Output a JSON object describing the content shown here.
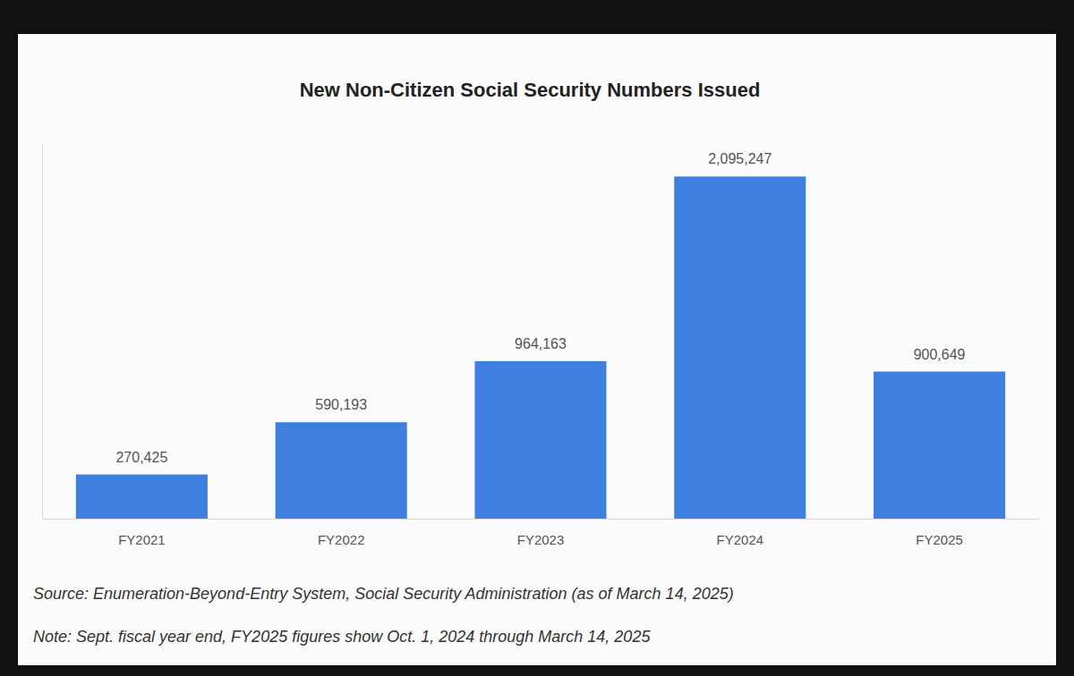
{
  "chart_data": {
    "type": "bar",
    "title": "New Non-Citizen Social Security Numbers Issued",
    "categories": [
      "FY2021",
      "FY2022",
      "FY2023",
      "FY2024",
      "FY2025"
    ],
    "values": [
      270425,
      590193,
      964163,
      2095247,
      900649
    ],
    "value_labels": [
      "270,425",
      "590,193",
      "964,163",
      "2,095,247",
      "900,649"
    ],
    "color": "#3f7fdf",
    "ylim": [
      0,
      2300000
    ],
    "data_labels": true,
    "tick_labels": "x",
    "source": "Source: Enumeration-Beyond-Entry System, Social Security Administration (as of March 14, 2025)",
    "note": "Note: Sept. fiscal year end, FY2025 figures show Oct. 1, 2024 through March 14, 2025"
  }
}
